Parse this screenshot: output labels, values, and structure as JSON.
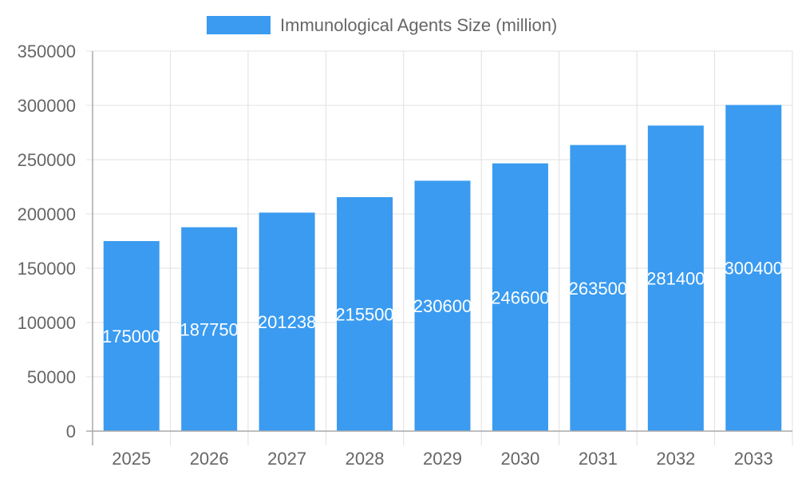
{
  "chart_data": {
    "type": "bar",
    "categories": [
      "2025",
      "2026",
      "2027",
      "2028",
      "2029",
      "2030",
      "2031",
      "2032",
      "2033"
    ],
    "series": [
      {
        "name": "Immunological Agents Size (million)",
        "values": [
          175000,
          187750,
          201238,
          215500,
          230600,
          246600,
          263500,
          281400,
          300400
        ],
        "color": "#3a9bf0"
      }
    ],
    "ylim": [
      0,
      350000
    ],
    "yticks": [
      0,
      50000,
      100000,
      150000,
      200000,
      250000,
      300000,
      350000
    ],
    "grid": true,
    "legend": "top",
    "data_labels": true,
    "xlabel": "",
    "ylabel": ""
  }
}
